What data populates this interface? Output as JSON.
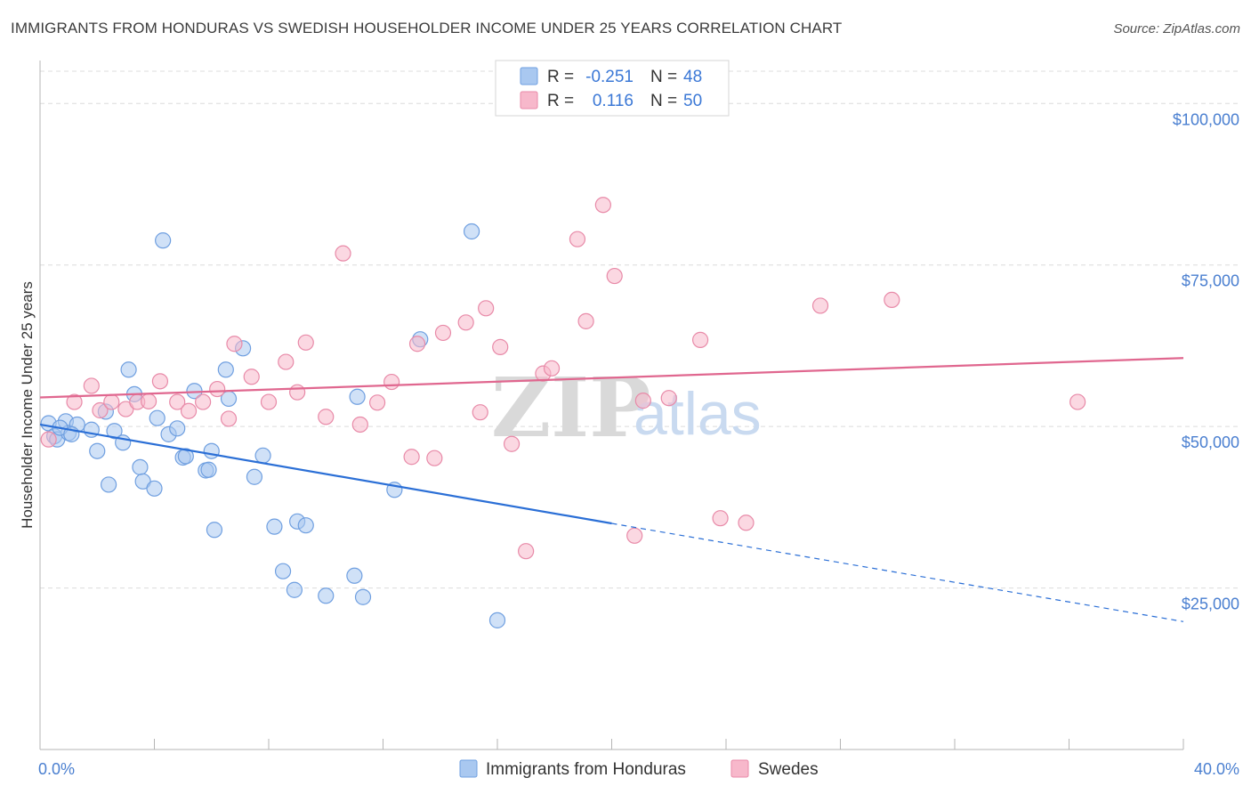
{
  "title": "IMMIGRANTS FROM HONDURAS VS SWEDISH HOUSEHOLDER INCOME UNDER 25 YEARS CORRELATION CHART",
  "source": "Source: ZipAtlas.com",
  "watermark": {
    "zip": "ZIP",
    "atlas": "atlas"
  },
  "legend_top": {
    "rows": [
      {
        "r_label": "R =",
        "r_value": "-0.251",
        "n_label": "N =",
        "n_value": "48",
        "color": "#a9c8f0"
      },
      {
        "r_label": "R =",
        "r_value": "0.116",
        "n_label": "N =",
        "n_value": "50",
        "color": "#f7b8cb"
      }
    ]
  },
  "legend_bottom": {
    "items": [
      {
        "label": "Immigrants from Honduras",
        "color": "#a9c8f0"
      },
      {
        "label": "Swedes",
        "color": "#f7b8cb"
      }
    ]
  },
  "chart_data": {
    "type": "scatter",
    "ylabel": "Householder Income Under 25 years",
    "xlim": [
      0,
      40
    ],
    "ylim": [
      0,
      105000
    ],
    "x_tick_labels": [
      {
        "value": 0,
        "label": "0.0%"
      },
      {
        "value": 40,
        "label": "40.0%"
      }
    ],
    "y_ticks": [
      {
        "value": 25000,
        "label": "$25,000"
      },
      {
        "value": 50000,
        "label": "$50,000"
      },
      {
        "value": 75000,
        "label": "$75,000"
      },
      {
        "value": 100000,
        "label": "$100,000"
      }
    ],
    "grid": true,
    "series": [
      {
        "name": "Immigrants from Honduras",
        "color": "#a9c8f0",
        "stroke": "#6f9fe0",
        "trend_color": "#2b6fd6",
        "trend": {
          "x0": 0,
          "y0": 50300,
          "x1": 20,
          "y1": 35000,
          "x_dash_end": 40,
          "y_dash_end": 19800
        },
        "points": [
          [
            0.3,
            50500
          ],
          [
            0.5,
            48500
          ],
          [
            0.6,
            48000
          ],
          [
            0.9,
            50800
          ],
          [
            1.0,
            49000
          ],
          [
            1.3,
            50300
          ],
          [
            1.8,
            49500
          ],
          [
            2.0,
            46200
          ],
          [
            2.3,
            52300
          ],
          [
            2.4,
            41000
          ],
          [
            2.6,
            49300
          ],
          [
            2.9,
            47500
          ],
          [
            3.1,
            58800
          ],
          [
            3.3,
            55000
          ],
          [
            3.5,
            43700
          ],
          [
            3.6,
            41500
          ],
          [
            4.0,
            40400
          ],
          [
            4.1,
            51300
          ],
          [
            4.3,
            78800
          ],
          [
            4.5,
            48800
          ],
          [
            4.8,
            49700
          ],
          [
            5.0,
            45200
          ],
          [
            5.1,
            45400
          ],
          [
            5.4,
            55500
          ],
          [
            5.8,
            43200
          ],
          [
            5.9,
            43300
          ],
          [
            6.0,
            46200
          ],
          [
            6.1,
            34000
          ],
          [
            6.5,
            58800
          ],
          [
            6.6,
            54300
          ],
          [
            7.1,
            62100
          ],
          [
            7.5,
            42200
          ],
          [
            7.8,
            45500
          ],
          [
            8.2,
            34500
          ],
          [
            8.5,
            27600
          ],
          [
            8.9,
            24700
          ],
          [
            9.0,
            35300
          ],
          [
            9.3,
            34700
          ],
          [
            10.0,
            23800
          ],
          [
            11.0,
            26900
          ],
          [
            11.1,
            54600
          ],
          [
            11.3,
            23600
          ],
          [
            12.4,
            40200
          ],
          [
            13.3,
            63500
          ],
          [
            15.1,
            80200
          ],
          [
            16.0,
            20000
          ],
          [
            0.7,
            49800
          ],
          [
            1.1,
            48800
          ]
        ]
      },
      {
        "name": "Swedes",
        "color": "#f7b8cb",
        "stroke": "#e88aa8",
        "trend_color": "#e0678f",
        "trend": {
          "x0": 0,
          "y0": 54500,
          "x1": 40,
          "y1": 60600
        },
        "points": [
          [
            0.3,
            48000
          ],
          [
            1.2,
            53800
          ],
          [
            1.8,
            56300
          ],
          [
            2.1,
            52500
          ],
          [
            2.5,
            53800
          ],
          [
            3.0,
            52700
          ],
          [
            3.4,
            53800
          ],
          [
            3.8,
            53900
          ],
          [
            4.2,
            57000
          ],
          [
            4.8,
            53800
          ],
          [
            5.2,
            52400
          ],
          [
            5.7,
            53800
          ],
          [
            6.2,
            55800
          ],
          [
            6.6,
            51200
          ],
          [
            6.8,
            62800
          ],
          [
            7.4,
            57700
          ],
          [
            8.0,
            53800
          ],
          [
            8.6,
            60000
          ],
          [
            9.0,
            55300
          ],
          [
            9.3,
            63000
          ],
          [
            10.0,
            51500
          ],
          [
            10.6,
            76800
          ],
          [
            11.2,
            50300
          ],
          [
            11.8,
            53700
          ],
          [
            12.3,
            56900
          ],
          [
            13.0,
            45300
          ],
          [
            13.2,
            62800
          ],
          [
            13.8,
            45100
          ],
          [
            14.1,
            64500
          ],
          [
            14.9,
            66100
          ],
          [
            15.4,
            52200
          ],
          [
            15.6,
            68300
          ],
          [
            16.1,
            62300
          ],
          [
            16.5,
            47300
          ],
          [
            17.0,
            30700
          ],
          [
            17.6,
            58200
          ],
          [
            17.9,
            59000
          ],
          [
            18.8,
            79000
          ],
          [
            19.1,
            66300
          ],
          [
            19.7,
            84300
          ],
          [
            20.1,
            73300
          ],
          [
            20.8,
            33100
          ],
          [
            21.1,
            54000
          ],
          [
            22.0,
            54400
          ],
          [
            23.1,
            63400
          ],
          [
            23.8,
            35800
          ],
          [
            24.7,
            35100
          ],
          [
            27.3,
            68700
          ],
          [
            29.8,
            69600
          ],
          [
            36.3,
            53800
          ]
        ]
      }
    ]
  }
}
